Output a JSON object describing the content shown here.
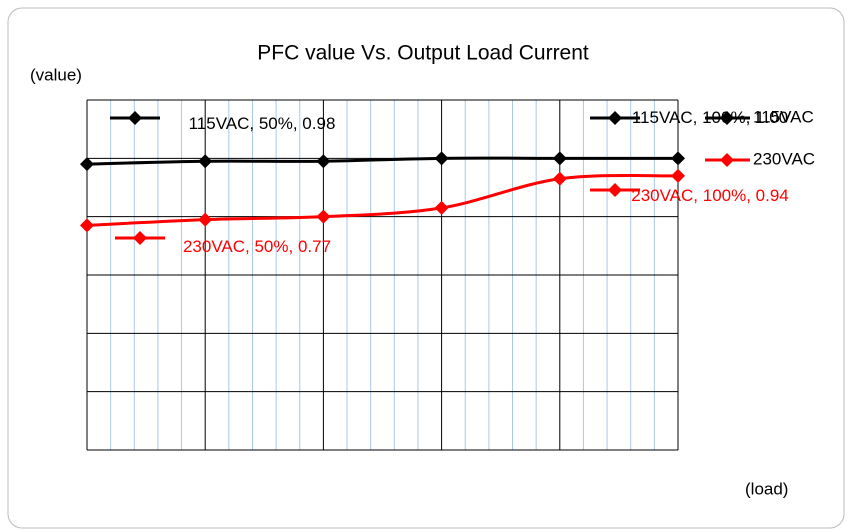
{
  "chart_data": {
    "type": "line",
    "title": "PFC value Vs. Output Load Current",
    "y_label": "(value)",
    "x_label": "(load)",
    "x": [
      50,
      60,
      70,
      80,
      90,
      100
    ],
    "xlim": [
      50,
      100
    ],
    "xticks": [
      50,
      60,
      70,
      80,
      90,
      100
    ],
    "xminorticks": [
      52,
      54,
      56,
      58,
      62,
      64,
      66,
      68,
      72,
      74,
      76,
      78,
      82,
      84,
      86,
      88,
      92,
      94,
      96,
      98
    ],
    "ylim": [
      0,
      1.2
    ],
    "yticks": [
      0,
      0.2,
      0.4,
      0.6,
      0.8,
      1.0,
      1.2
    ],
    "grid": true,
    "legend": "right",
    "series": [
      {
        "name": "115VAC",
        "color": "#000000",
        "values": [
          0.98,
          0.99,
          0.99,
          1.0,
          1.0,
          1.0
        ],
        "value_labels": [
          "115VAC, 50%, 0.98",
          null,
          null,
          null,
          null,
          "115VAC, 100%, 1.00"
        ]
      },
      {
        "name": "230VAC",
        "color": "#ff0000",
        "values": [
          0.77,
          0.79,
          0.8,
          0.83,
          0.93,
          0.94
        ],
        "value_labels": [
          "230VAC, 50%, 0.77",
          null,
          null,
          null,
          null,
          "230VAC, 100%, 0.94"
        ]
      }
    ]
  }
}
